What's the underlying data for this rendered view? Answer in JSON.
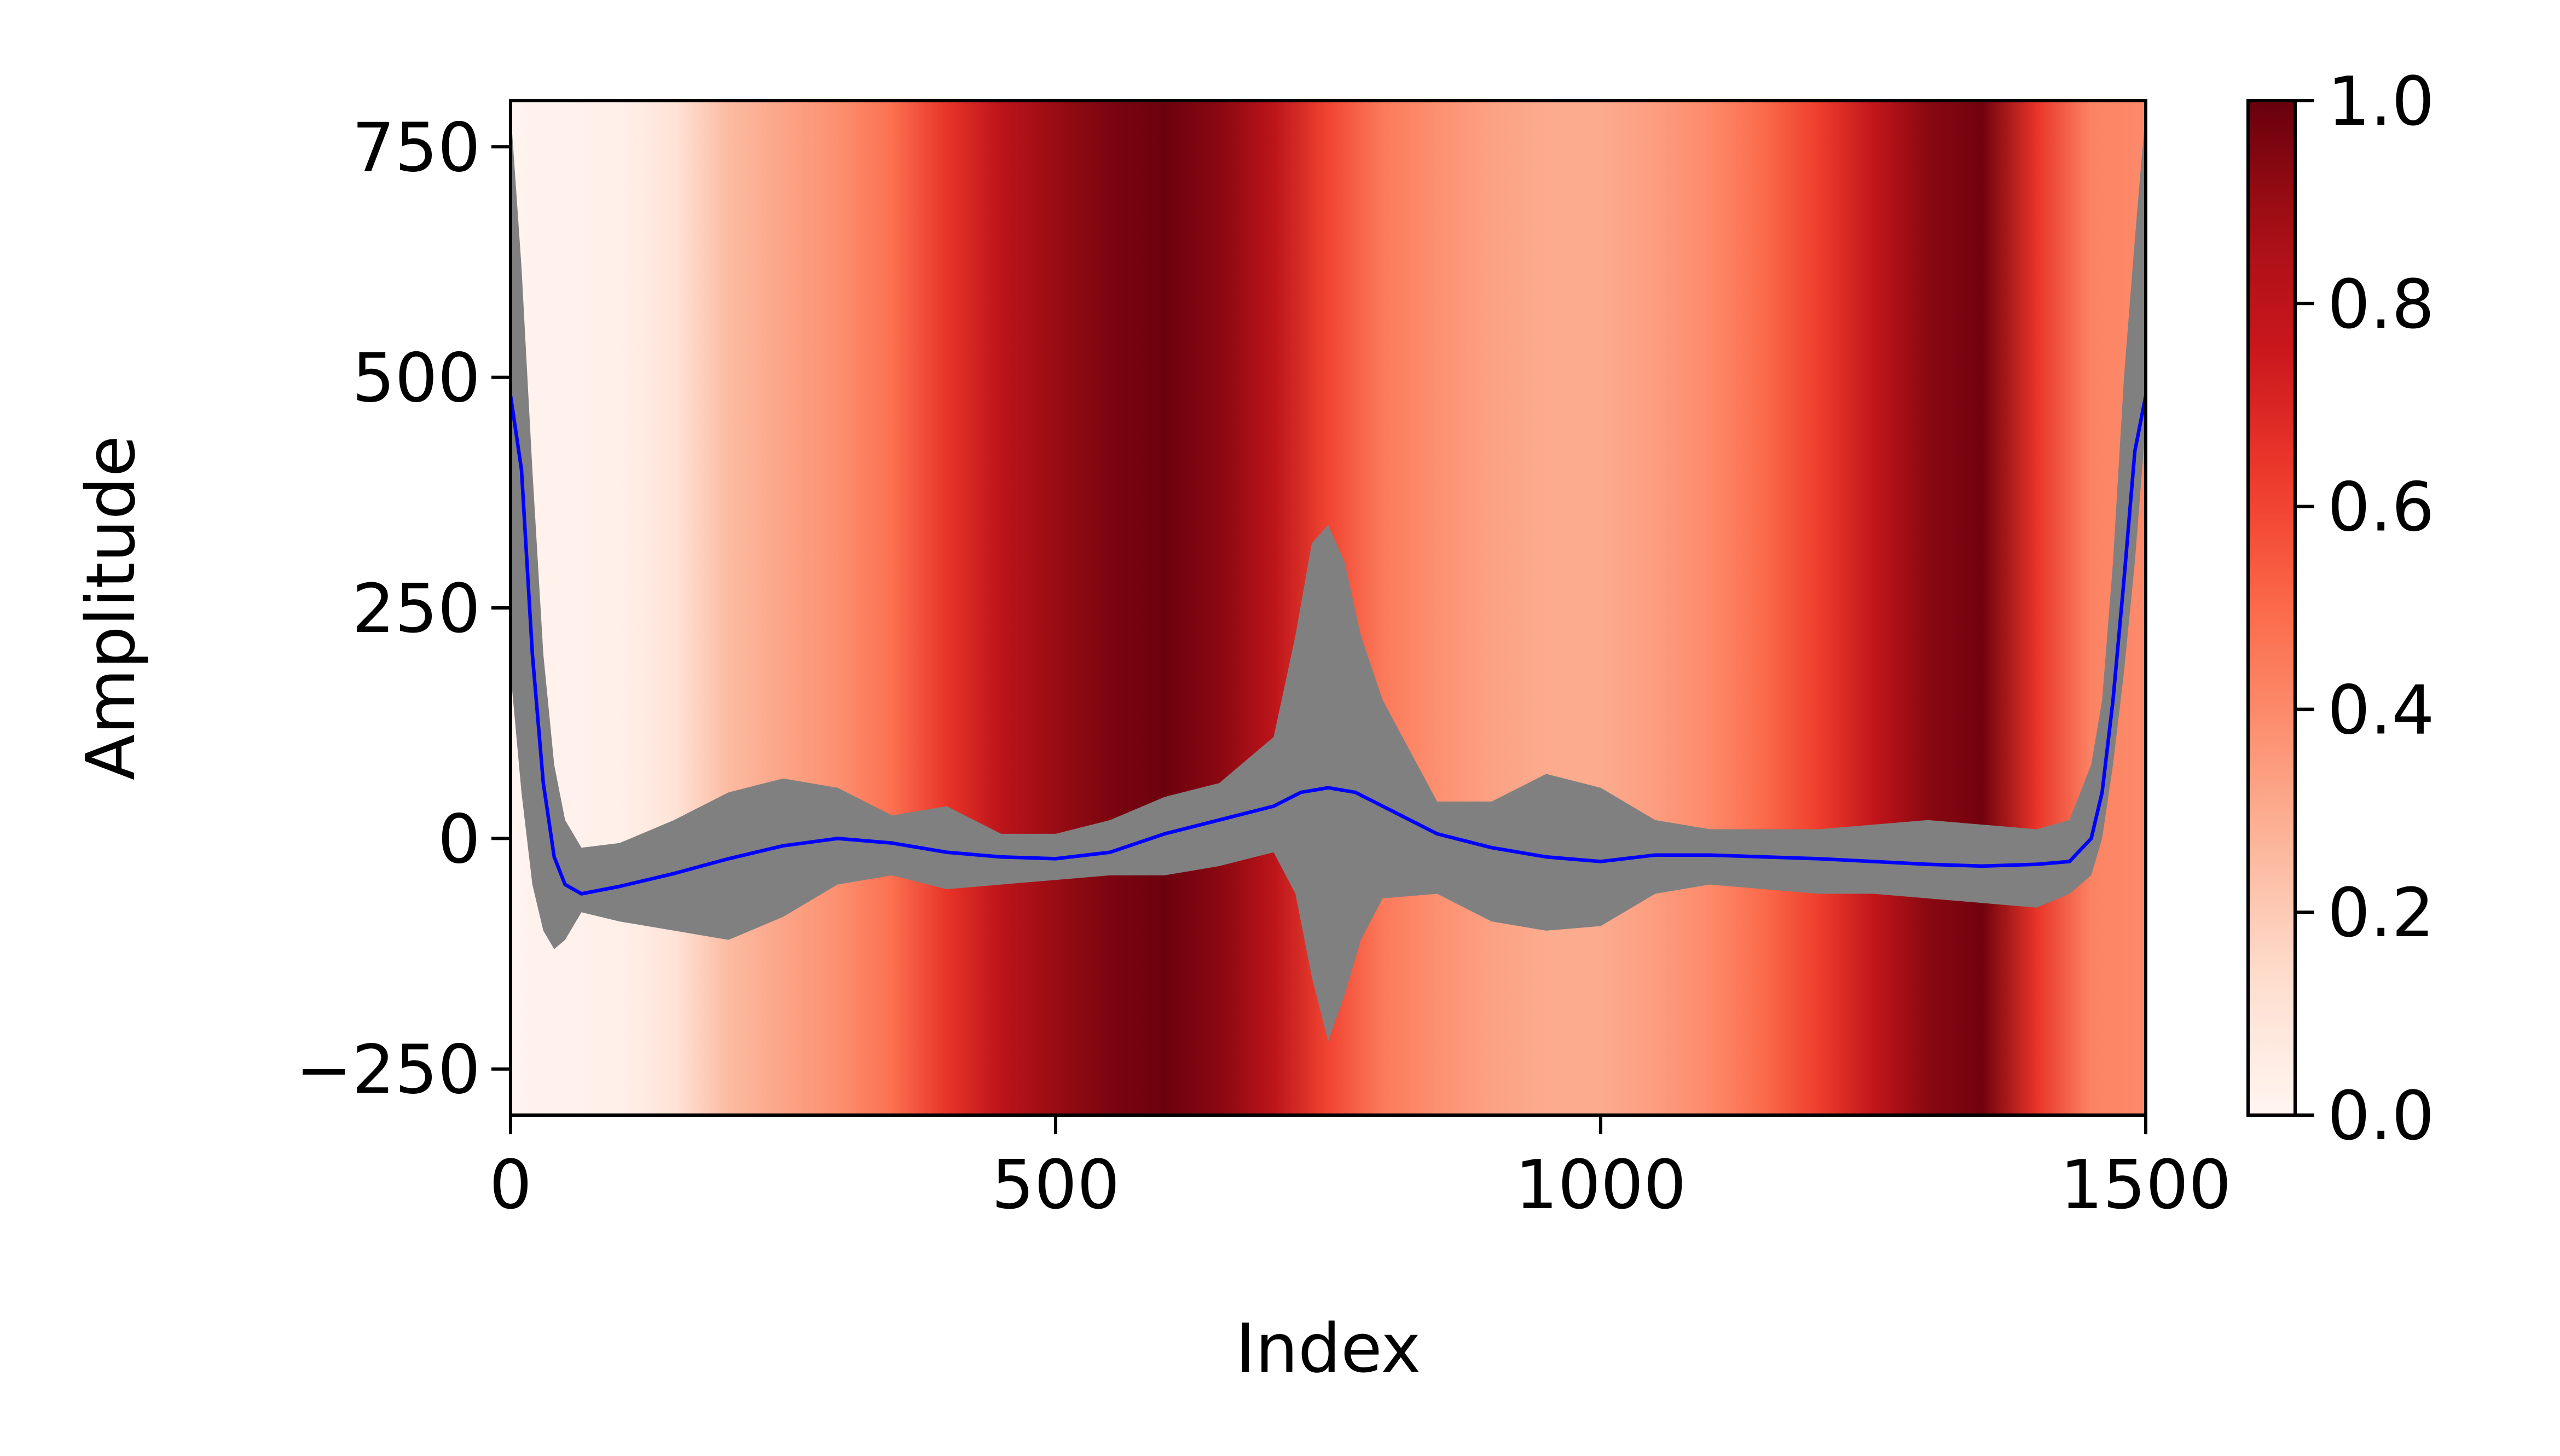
{
  "chart_data": {
    "type": "line",
    "title": "",
    "xlabel": "Index",
    "ylabel": "Amplitude",
    "xlim": [
      0,
      1500
    ],
    "ylim": [
      -300,
      800
    ],
    "x_ticks": [
      0,
      500,
      1000,
      1500
    ],
    "x_tick_labels": [
      "0",
      "500",
      "1000",
      "1500"
    ],
    "y_ticks": [
      -250,
      0,
      250,
      500,
      750
    ],
    "y_tick_labels": [
      "−250",
      "0",
      "250",
      "500",
      "750"
    ],
    "grid": false,
    "legend": "none",
    "line_color": "#0000ff",
    "band_color": "#808080",
    "background_colormap": "Reds",
    "colorbar": {
      "range": [
        0,
        1
      ],
      "ticks": [
        0.0,
        0.2,
        0.4,
        0.6,
        0.8,
        1.0
      ],
      "tick_labels": [
        "0.0",
        "0.2",
        "0.4",
        "0.6",
        "0.8",
        "1.0"
      ]
    },
    "background_profile": {
      "x": [
        0,
        100,
        150,
        200,
        250,
        300,
        350,
        400,
        450,
        500,
        550,
        600,
        650,
        700,
        750,
        800,
        850,
        900,
        950,
        1000,
        1050,
        1100,
        1150,
        1200,
        1250,
        1300,
        1350,
        1400,
        1450,
        1500
      ],
      "value": [
        0.01,
        0.03,
        0.1,
        0.25,
        0.32,
        0.38,
        0.48,
        0.65,
        0.8,
        0.9,
        0.96,
        0.99,
        0.93,
        0.8,
        0.6,
        0.45,
        0.38,
        0.33,
        0.3,
        0.3,
        0.34,
        0.4,
        0.5,
        0.62,
        0.78,
        0.93,
        0.98,
        0.65,
        0.42,
        0.4
      ]
    },
    "series": [
      {
        "x": [
          0,
          10,
          20,
          30,
          40,
          50,
          65,
          100,
          150,
          200,
          250,
          300,
          350,
          400,
          450,
          500,
          550,
          600,
          650,
          700,
          725,
          750,
          775,
          800,
          850,
          900,
          950,
          1000,
          1050,
          1100,
          1150,
          1200,
          1250,
          1300,
          1350,
          1400,
          1430,
          1450,
          1460,
          1470,
          1480,
          1490,
          1500
        ],
        "values": [
          480,
          400,
          200,
          60,
          -20,
          -50,
          -60,
          -52,
          -38,
          -22,
          -8,
          0,
          -5,
          -15,
          -20,
          -22,
          -15,
          5,
          20,
          35,
          50,
          55,
          50,
          35,
          5,
          -10,
          -20,
          -25,
          -18,
          -18,
          -20,
          -22,
          -25,
          -28,
          -30,
          -28,
          -25,
          0,
          50,
          150,
          280,
          420,
          480
        ]
      }
    ],
    "band": {
      "x": [
        0,
        10,
        20,
        30,
        40,
        50,
        65,
        100,
        150,
        200,
        250,
        300,
        350,
        400,
        450,
        500,
        550,
        600,
        650,
        700,
        720,
        735,
        750,
        765,
        780,
        800,
        850,
        900,
        950,
        1000,
        1050,
        1100,
        1150,
        1200,
        1250,
        1300,
        1350,
        1400,
        1430,
        1450,
        1460,
        1470,
        1480,
        1490,
        1500
      ],
      "upper": [
        790,
        620,
        400,
        200,
        80,
        20,
        -10,
        -5,
        20,
        50,
        65,
        55,
        25,
        35,
        5,
        5,
        20,
        45,
        60,
        110,
        220,
        320,
        340,
        300,
        220,
        150,
        40,
        40,
        70,
        55,
        20,
        10,
        10,
        10,
        15,
        20,
        15,
        10,
        20,
        80,
        150,
        300,
        500,
        650,
        790
      ],
      "lower": [
        180,
        50,
        -50,
        -100,
        -120,
        -110,
        -80,
        -90,
        -100,
        -110,
        -85,
        -50,
        -40,
        -55,
        -50,
        -45,
        -40,
        -40,
        -30,
        -15,
        -60,
        -150,
        -220,
        -170,
        -110,
        -65,
        -60,
        -90,
        -100,
        -95,
        -60,
        -50,
        -55,
        -60,
        -60,
        -65,
        -70,
        -75,
        -60,
        -40,
        0,
        80,
        180,
        300,
        450
      ]
    }
  }
}
